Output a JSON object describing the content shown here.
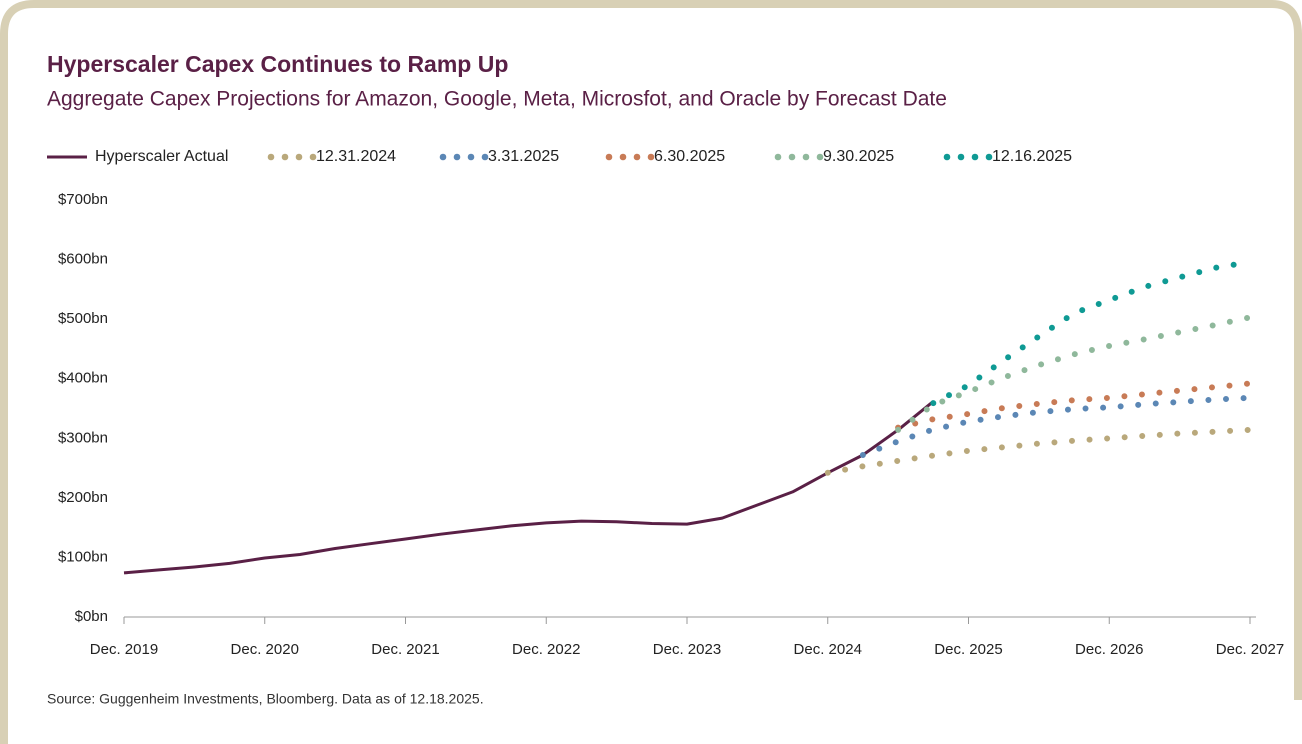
{
  "chart_data": {
    "type": "line",
    "title": "Hyperscaler Capex Continues to Ramp Up",
    "subtitle": "Aggregate Capex Projections for Amazon, Google, Meta, Microsfot, and Oracle by Forecast Date",
    "source": "Source: Guggenheim Investments, Bloomberg. Data as of 12.18.2025.",
    "categories": [
      "Dec. 2019",
      null,
      null,
      null,
      "Dec. 2020",
      null,
      null,
      null,
      "Dec. 2021",
      null,
      null,
      null,
      "Dec. 2022",
      null,
      null,
      null,
      "Dec. 2023",
      null,
      null,
      null,
      "Dec. 2024",
      null,
      null,
      null,
      "Dec. 2025",
      null,
      null,
      null,
      "Dec. 2026",
      null,
      null,
      null,
      "Dec. 2027"
    ],
    "ylim": [
      0,
      700
    ],
    "yticks": [
      {
        "value": 0,
        "label": "$0bn"
      },
      {
        "value": 100,
        "label": "$100bn"
      },
      {
        "value": 200,
        "label": "$200bn"
      },
      {
        "value": 300,
        "label": "$300bn"
      },
      {
        "value": 400,
        "label": "$400bn"
      },
      {
        "value": 500,
        "label": "$500bn"
      },
      {
        "value": 600,
        "label": "$600bn"
      },
      {
        "value": 700,
        "label": "$700bn"
      }
    ],
    "grid": false,
    "series": [
      {
        "name": "Hyperscaler Actual",
        "color": "#5a2046",
        "style": "solid",
        "values": [
          74,
          79,
          84,
          90,
          99,
          105,
          115,
          123,
          131,
          139,
          146,
          153,
          158,
          161,
          160,
          157,
          156,
          166,
          188,
          210,
          242,
          272,
          314,
          362,
          null,
          null,
          null,
          null,
          null,
          null,
          null,
          null,
          null
        ]
      },
      {
        "name": "12.31.2024",
        "color": "#b9a87b",
        "style": "dotted",
        "values": [
          null,
          null,
          null,
          null,
          null,
          null,
          null,
          null,
          null,
          null,
          null,
          null,
          null,
          null,
          null,
          null,
          null,
          null,
          null,
          null,
          242,
          253,
          262,
          271,
          279,
          285,
          291,
          296,
          300,
          304,
          308,
          311,
          314
        ]
      },
      {
        "name": "3.31.2025",
        "color": "#5b87b5",
        "style": "dotted",
        "values": [
          null,
          null,
          null,
          null,
          null,
          null,
          null,
          null,
          null,
          null,
          null,
          null,
          null,
          null,
          null,
          null,
          null,
          null,
          null,
          null,
          null,
          272,
          295,
          315,
          328,
          337,
          344,
          349,
          352,
          357,
          361,
          365,
          368
        ]
      },
      {
        "name": "6.30.2025",
        "color": "#c87b56",
        "style": "dotted",
        "values": [
          null,
          null,
          null,
          null,
          null,
          null,
          null,
          null,
          null,
          null,
          null,
          null,
          null,
          null,
          null,
          null,
          null,
          null,
          null,
          null,
          null,
          null,
          318,
          332,
          341,
          351,
          358,
          364,
          368,
          374,
          380,
          386,
          392
        ]
      },
      {
        "name": "9.30.2025",
        "color": "#8fb89b",
        "style": "dotted",
        "values": [
          null,
          null,
          null,
          null,
          null,
          null,
          null,
          null,
          null,
          null,
          null,
          null,
          null,
          null,
          null,
          null,
          null,
          null,
          null,
          null,
          null,
          null,
          314,
          356,
          378,
          402,
          423,
          441,
          455,
          466,
          478,
          490,
          503
        ]
      },
      {
        "name": "12.16.2025",
        "color": "#0f9a94",
        "style": "dotted",
        "values": [
          null,
          null,
          null,
          null,
          null,
          null,
          null,
          null,
          null,
          null,
          null,
          null,
          null,
          null,
          null,
          null,
          null,
          null,
          null,
          null,
          null,
          null,
          null,
          359,
          389,
          431,
          471,
          510,
          532,
          554,
          570,
          586,
          596
        ]
      }
    ]
  }
}
